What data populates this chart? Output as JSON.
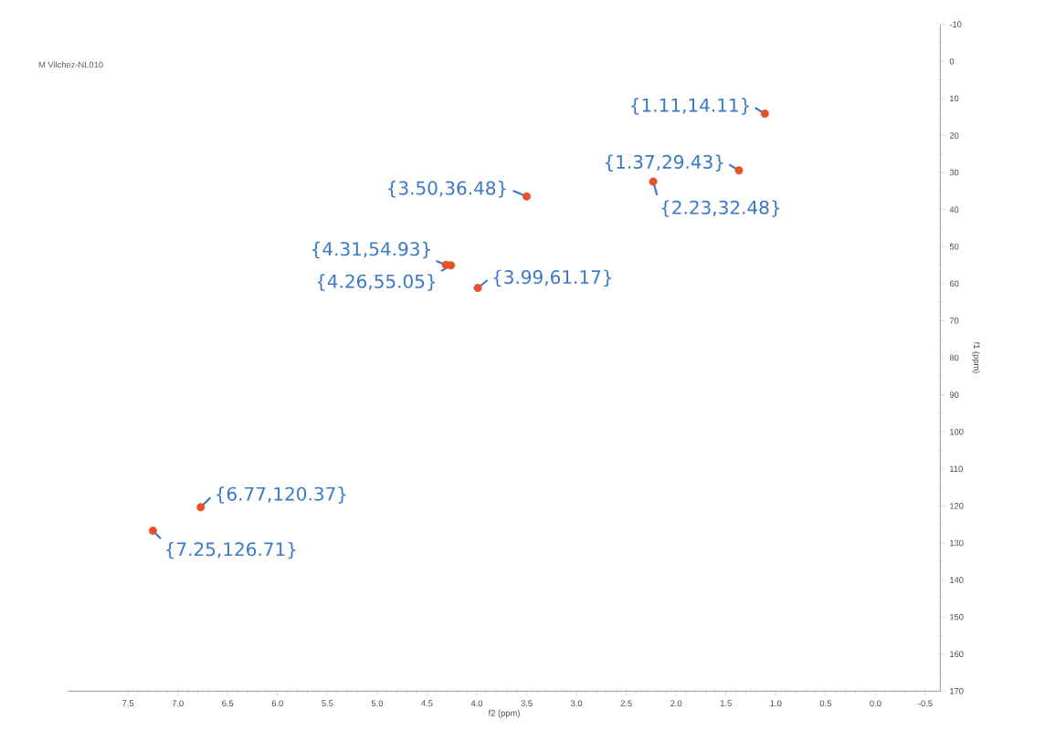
{
  "chart_data": {
    "type": "scatter",
    "title": "M Vilchez-NL010",
    "xlabel": "f2 (ppm)",
    "ylabel": "f1 (ppm)",
    "x": [
      1.11,
      1.37,
      2.23,
      3.5,
      4.31,
      4.26,
      3.99,
      6.77,
      7.25
    ],
    "series": [
      {
        "color": "#e8502a",
        "values": [
          14.11,
          29.43,
          32.48,
          36.48,
          54.93,
          55.05,
          61.17,
          120.37,
          126.71
        ]
      }
    ],
    "xlim": [
      8.1,
      -0.65
    ],
    "ylim": [
      170,
      -10
    ],
    "xticks": [
      7.5,
      {
        "value": 7,
        "label": "7.0"
      },
      6.5,
      {
        "value": 6,
        "label": "6.0"
      },
      5.5,
      {
        "value": 5,
        "label": "5.0"
      },
      4.5,
      {
        "value": 4,
        "label": "4.0"
      },
      3.5,
      {
        "value": 3,
        "label": "3.0"
      },
      2.5,
      {
        "value": 2,
        "label": "2.0"
      },
      1.5,
      {
        "value": 1,
        "label": "1.0"
      },
      0.5,
      {
        "value": 0,
        "label": "0.0"
      },
      -0.5
    ],
    "yticks": [
      -10,
      0,
      10,
      20,
      30,
      40,
      50,
      60,
      70,
      80,
      90,
      100,
      110,
      120,
      130,
      140,
      150,
      160,
      170
    ],
    "annotations": [
      {
        "text": "{1.11,14.11}",
        "x": 1.11,
        "y": 14.11
      },
      {
        "text": "{1.37,29.43}",
        "x": 1.37,
        "y": 29.43
      },
      {
        "text": "{2.23,32.48}",
        "x": 2.23,
        "y": 32.48
      },
      {
        "text": "{3.50,36.48}",
        "x": 3.5,
        "y": 36.48
      },
      {
        "text": "{4.31,54.93}",
        "x": 4.31,
        "y": 54.93
      },
      {
        "text": "{4.26,55.05}",
        "x": 4.26,
        "y": 55.05
      },
      {
        "text": "{3.99,61.17}",
        "x": 3.99,
        "y": 61.17
      },
      {
        "text": "{6.77,120.37}",
        "x": 6.77,
        "y": 120.37
      },
      {
        "text": "{7.25,126.71}",
        "x": 7.25,
        "y": 126.71
      }
    ]
  }
}
